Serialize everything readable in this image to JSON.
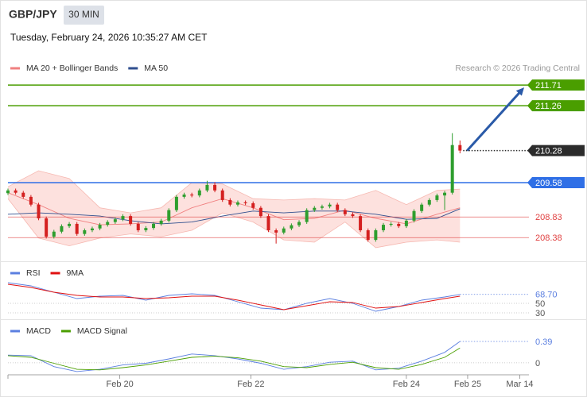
{
  "header": {
    "symbol": "GBP/JPY",
    "timeframe": "30 MIN",
    "datetime": "Tuesday, February 24, 2026 10:35:27 AM CET"
  },
  "chart_data": [
    {
      "type": "candlestick",
      "credit": "Research © 2026 Trading Central",
      "up_color": "#2e9e2e",
      "down_color": "#d42020",
      "xlim": [
        0,
        68
      ],
      "ylim": [
        208.02,
        211.92
      ],
      "open": [
        209.35,
        209.41,
        209.36,
        209.27,
        209.1,
        208.8,
        208.4,
        208.51,
        208.63,
        208.68,
        208.46,
        208.54,
        208.58,
        208.66,
        208.72,
        208.78,
        208.85,
        208.68,
        208.54,
        208.59,
        208.68,
        208.75,
        208.98,
        209.27,
        209.32,
        209.3,
        209.41,
        209.53,
        209.41,
        209.2,
        209.1,
        209.15,
        209.13,
        209.03,
        208.85,
        208.54,
        208.49,
        208.58,
        208.65,
        208.72,
        208.98,
        209.03,
        209.06,
        209.1,
        208.98,
        208.89,
        208.85,
        208.54,
        208.33,
        208.54,
        208.66,
        208.68,
        208.63,
        208.75,
        208.96,
        209.1,
        209.2,
        209.3,
        209.36,
        210.4
      ],
      "high": [
        209.45,
        209.45,
        209.4,
        209.31,
        209.14,
        208.84,
        208.55,
        208.67,
        208.72,
        208.72,
        208.58,
        208.62,
        208.7,
        208.76,
        208.82,
        208.89,
        208.89,
        208.72,
        208.63,
        208.72,
        208.79,
        209.02,
        209.31,
        209.36,
        209.36,
        209.45,
        209.62,
        209.59,
        209.45,
        209.24,
        209.19,
        209.19,
        209.17,
        209.07,
        208.89,
        208.58,
        208.62,
        208.69,
        208.76,
        209.02,
        209.07,
        209.1,
        209.14,
        209.14,
        209.02,
        208.93,
        208.89,
        208.58,
        208.58,
        208.7,
        208.72,
        208.72,
        208.79,
        209.0,
        209.14,
        209.24,
        209.34,
        209.4,
        210.66,
        210.5
      ],
      "low": [
        209.31,
        209.32,
        209.23,
        209.06,
        208.76,
        208.36,
        208.36,
        208.47,
        208.59,
        208.42,
        208.42,
        208.5,
        208.54,
        208.62,
        208.68,
        208.74,
        208.64,
        208.5,
        208.5,
        208.55,
        208.64,
        208.71,
        208.94,
        209.23,
        209.26,
        209.26,
        209.37,
        209.37,
        209.16,
        209.06,
        209.06,
        209.09,
        208.99,
        208.81,
        208.5,
        208.25,
        208.45,
        208.54,
        208.61,
        208.68,
        208.94,
        208.99,
        209.02,
        208.94,
        208.85,
        208.81,
        208.5,
        208.29,
        208.29,
        208.5,
        208.62,
        208.59,
        208.59,
        208.71,
        208.92,
        209.06,
        209.16,
        208.98,
        209.32,
        210.22
      ],
      "close": [
        209.41,
        209.36,
        209.27,
        209.1,
        208.8,
        208.4,
        208.51,
        208.63,
        208.68,
        208.46,
        208.54,
        208.58,
        208.66,
        208.72,
        208.78,
        208.85,
        208.68,
        208.54,
        208.59,
        208.68,
        208.75,
        208.98,
        209.27,
        209.32,
        209.3,
        209.41,
        209.53,
        209.41,
        209.2,
        209.1,
        209.15,
        209.13,
        209.03,
        208.85,
        208.54,
        208.49,
        208.58,
        208.65,
        208.72,
        208.98,
        209.03,
        209.06,
        209.1,
        208.98,
        208.89,
        208.85,
        208.54,
        208.33,
        208.54,
        208.66,
        208.68,
        208.63,
        208.75,
        208.96,
        209.1,
        209.2,
        209.3,
        209.36,
        210.4,
        210.28
      ],
      "overlays": [
        {
          "name": "MA 20 + Bollinger Bands",
          "color": "#f08080",
          "band_color": "#fde1de",
          "band_line": "#f6b8b1",
          "x": [
            0,
            4,
            8,
            12,
            16,
            20,
            24,
            28,
            32,
            36,
            40,
            44,
            48,
            52,
            56,
            59
          ],
          "values": [
            209.36,
            209.1,
            208.8,
            208.66,
            208.68,
            208.72,
            209.03,
            209.23,
            209.03,
            208.77,
            208.8,
            208.98,
            208.8,
            208.68,
            208.89,
            209.03
          ],
          "upper": [
            209.49,
            209.84,
            209.67,
            209.03,
            208.92,
            209.03,
            209.58,
            209.55,
            209.23,
            209.2,
            209.23,
            209.2,
            209.41,
            209.1,
            209.41,
            209.44
          ],
          "lower": [
            209.23,
            208.37,
            208.2,
            208.37,
            208.46,
            208.4,
            208.54,
            208.92,
            208.72,
            208.33,
            208.28,
            208.72,
            208.16,
            208.28,
            208.33,
            208.28
          ]
        },
        {
          "name": "MA 50",
          "color": "#2f4f8f",
          "x": [
            0,
            4,
            8,
            12,
            16,
            20,
            24,
            28,
            32,
            36,
            40,
            44,
            48,
            52,
            56,
            59
          ],
          "values": [
            208.89,
            208.92,
            208.89,
            208.85,
            208.75,
            208.68,
            208.72,
            208.85,
            208.96,
            208.92,
            208.96,
            208.96,
            208.89,
            208.78,
            208.8,
            209.01
          ]
        }
      ],
      "levels": [
        {
          "value": 211.71,
          "color": "#4a9e00",
          "style": "box"
        },
        {
          "value": 211.26,
          "color": "#4a9e00",
          "style": "box"
        },
        {
          "value": 210.28,
          "color": "#2b2b2b",
          "style": "dotted-box"
        },
        {
          "value": 209.58,
          "color": "#2f6fe6",
          "style": "box"
        },
        {
          "value": 208.83,
          "color": "#e04040",
          "style": "text"
        },
        {
          "value": 208.38,
          "color": "#e04040",
          "style": "text"
        }
      ]
    },
    {
      "type": "line",
      "xlim": [
        0,
        68
      ],
      "ylim": [
        20,
        100
      ],
      "yticks": [
        30,
        50
      ],
      "x": [
        0,
        3,
        6,
        9,
        12,
        15,
        18,
        21,
        24,
        27,
        30,
        33,
        36,
        39,
        42,
        45,
        48,
        51,
        54,
        57,
        59
      ],
      "series": [
        {
          "name": "RSI",
          "color": "#5b7fe0",
          "values": [
            93.3,
            86.7,
            73.3,
            60,
            65,
            66.7,
            56.7,
            66.7,
            70,
            66.7,
            53.3,
            40,
            36.7,
            50,
            60,
            50,
            33.3,
            43.3,
            56.7,
            63.3,
            68.7
          ]
        },
        {
          "name": "9MA",
          "color": "#e01010",
          "values": [
            90,
            83.3,
            73.3,
            66.7,
            63.3,
            63.3,
            60,
            61.7,
            65,
            65,
            56.7,
            46.7,
            36.7,
            45,
            53.3,
            51.7,
            40,
            43.3,
            51.7,
            60,
            65
          ]
        }
      ],
      "current": {
        "value": 68.7,
        "label": "68.70"
      }
    },
    {
      "type": "line",
      "xlim": [
        0,
        68
      ],
      "ylim": [
        -0.22,
        0.68
      ],
      "yticks": [
        0
      ],
      "x": [
        0,
        3,
        6,
        9,
        12,
        15,
        18,
        21,
        24,
        27,
        30,
        33,
        36,
        39,
        42,
        45,
        48,
        51,
        54,
        57,
        59
      ],
      "series": [
        {
          "name": "MACD",
          "color": "#5b7fe0",
          "values": [
            0.14,
            0.13,
            -0.07,
            -0.16,
            -0.12,
            -0.04,
            -0.01,
            0.07,
            0.16,
            0.13,
            0.07,
            -0.01,
            -0.12,
            -0.07,
            0.01,
            0.03,
            -0.13,
            -0.1,
            0.03,
            0.19,
            0.39
          ]
        },
        {
          "name": "MACD Signal",
          "color": "#4a9e00",
          "values": [
            0.13,
            0.1,
            -0.01,
            -0.12,
            -0.13,
            -0.09,
            -0.04,
            0.03,
            0.1,
            0.12,
            0.09,
            0.03,
            -0.07,
            -0.09,
            -0.03,
            0.01,
            -0.09,
            -0.12,
            -0.03,
            0.1,
            0.27
          ]
        }
      ],
      "current": 0.39,
      "xticks": [
        {
          "value": 14.6,
          "label": "Feb 20"
        },
        {
          "value": 31.7,
          "label": "Feb 22"
        },
        {
          "value": 52,
          "label": "Feb 24"
        },
        {
          "value": 60,
          "label": "Feb 25"
        },
        {
          "value": 66.8,
          "label": "Mar 14"
        }
      ]
    }
  ]
}
